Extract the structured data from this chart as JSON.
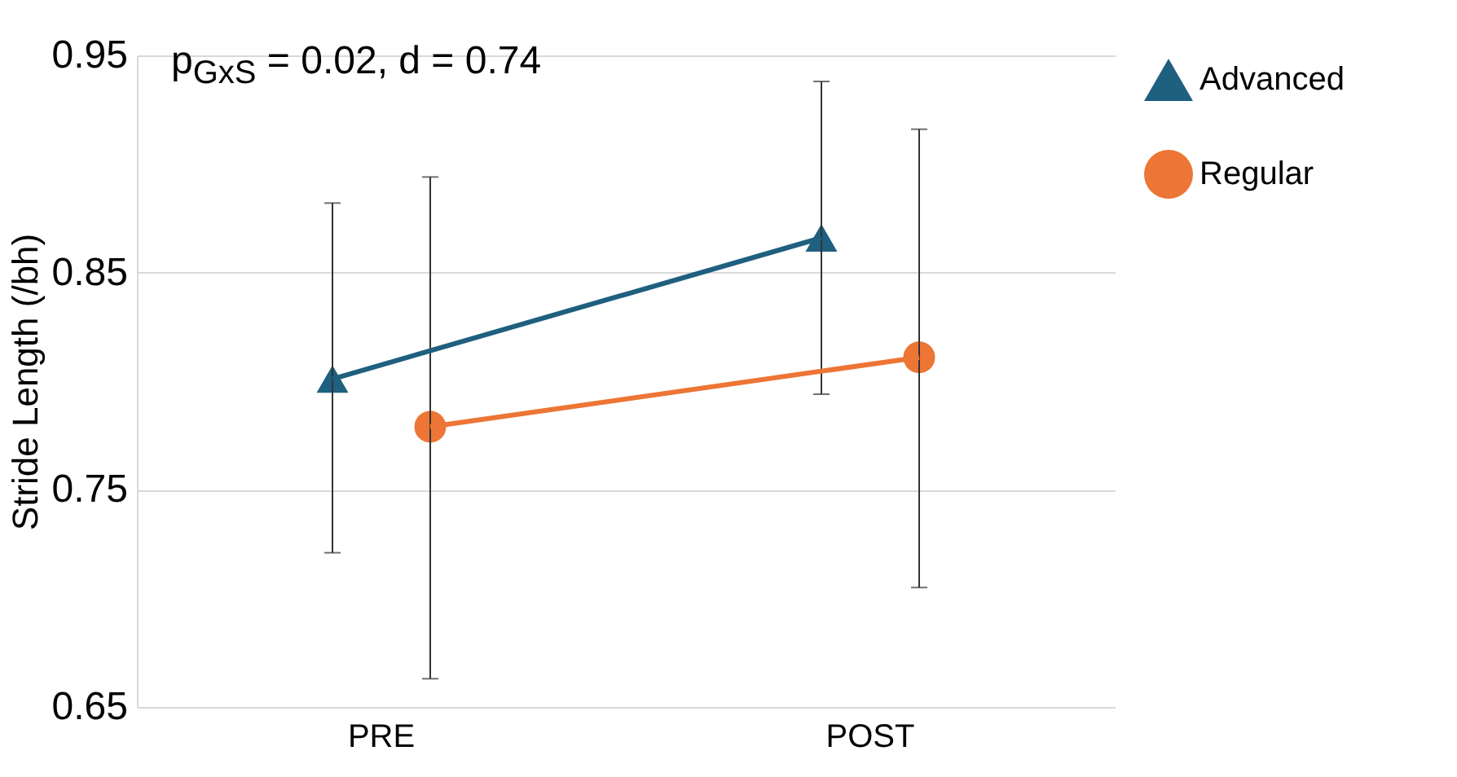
{
  "chart_data": {
    "type": "line",
    "ylabel": "Stride Length (/bh)",
    "categories": [
      "PRE",
      "POST"
    ],
    "ylim": [
      0.65,
      0.95
    ],
    "yticks": [
      0.65,
      0.75,
      0.85,
      0.95
    ],
    "grid": "y",
    "legend": "right",
    "annotations": [
      "p$_{GxS}$ = 0.02, d = 0.74"
    ],
    "series": [
      {
        "name": "Advanced",
        "color": "#1f5f7f",
        "marker": "triangle",
        "values": [
          0.801,
          0.866
        ],
        "errors": [
          [
            0.721,
            0.882
          ],
          [
            0.794,
            0.938
          ]
        ]
      },
      {
        "name": "Regular",
        "color": "#ed7535",
        "marker": "circle",
        "values": [
          0.779,
          0.811
        ],
        "errors": [
          [
            0.663,
            0.894
          ],
          [
            0.705,
            0.916
          ]
        ]
      }
    ]
  }
}
